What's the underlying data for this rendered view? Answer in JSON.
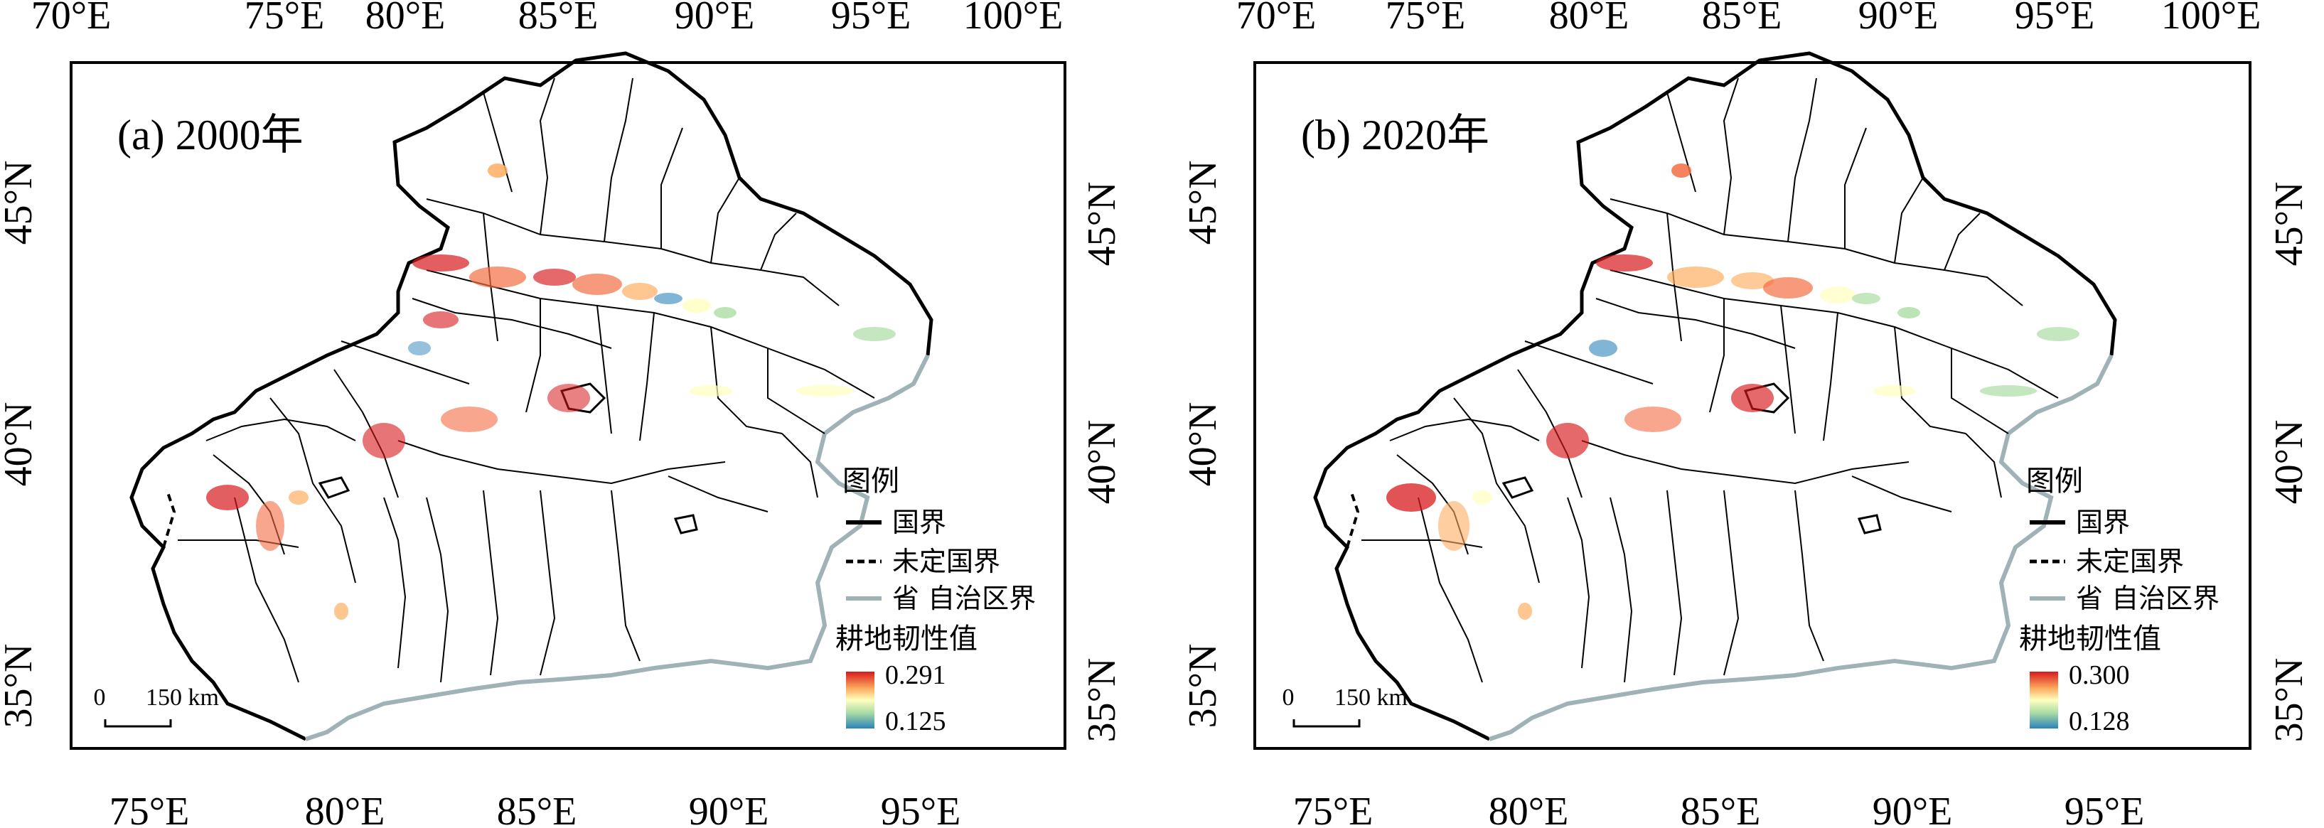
{
  "panels": [
    {
      "id": "a",
      "title": "(a) 2000年",
      "lon_ticks_top": [
        "70°E",
        "75°E",
        "80°E",
        "85°E",
        "90°E",
        "95°E",
        "100°E"
      ],
      "lon_ticks_bottom": [
        "75°E",
        "80°E",
        "85°E",
        "90°E",
        "95°E"
      ],
      "lat_ticks": [
        "45°N",
        "40°N",
        "35°N"
      ],
      "legend": {
        "title": "图例",
        "items": [
          {
            "label": "国界",
            "style": "solid-black"
          },
          {
            "label": "未定国界",
            "style": "dashed-black"
          },
          {
            "label": "省 自治区界",
            "style": "solid-gray"
          }
        ],
        "colorbar_title": "耕地韧性值",
        "max": "0.291",
        "min": "0.125"
      },
      "scale_bar": {
        "start": "0",
        "end": "150 km"
      }
    },
    {
      "id": "b",
      "title": "(b) 2020年",
      "lon_ticks_top": [
        "70°E",
        "75°E",
        "80°E",
        "85°E",
        "90°E",
        "95°E",
        "100°E"
      ],
      "lon_ticks_bottom": [
        "75°E",
        "80°E",
        "85°E",
        "90°E",
        "95°E"
      ],
      "lat_ticks": [
        "45°N",
        "40°N",
        "35°N"
      ],
      "legend": {
        "title": "图例",
        "items": [
          {
            "label": "国界",
            "style": "solid-black"
          },
          {
            "label": "未定国界",
            "style": "dashed-black"
          },
          {
            "label": "省 自治区界",
            "style": "solid-gray"
          }
        ],
        "colorbar_title": "耕地韧性值",
        "max": "0.300",
        "min": "0.128"
      },
      "scale_bar": {
        "start": "0",
        "end": "150 km"
      }
    }
  ],
  "colors": {
    "ramp_high": "#d7191c",
    "ramp_mid_high": "#fdae61",
    "ramp_mid": "#ffffbf",
    "ramp_mid_low": "#abdda4",
    "ramp_low": "#2b83ba",
    "national_border": "#000000",
    "province_border": "#9fb2b5"
  }
}
